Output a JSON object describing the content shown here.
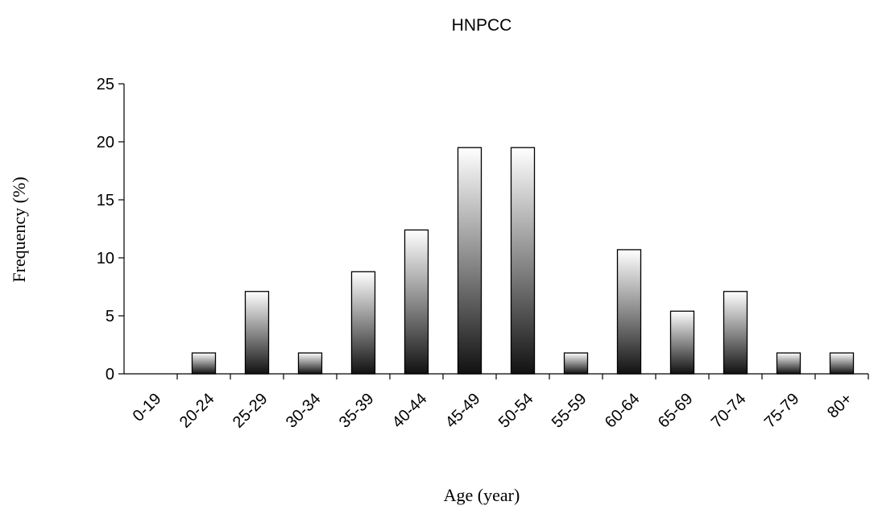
{
  "chart_data": {
    "type": "bar",
    "title": "HNPCC",
    "xlabel": "Age (year)",
    "ylabel": "Frequency (%)",
    "categories": [
      "0-19",
      "20-24",
      "25-29",
      "30-34",
      "35-39",
      "40-44",
      "45-49",
      "50-54",
      "55-59",
      "60-64",
      "65-69",
      "70-74",
      "75-79",
      "80+"
    ],
    "values": [
      0,
      1.8,
      7.1,
      1.8,
      8.8,
      12.4,
      19.5,
      19.5,
      1.8,
      10.7,
      5.4,
      7.1,
      1.8,
      1.8
    ],
    "ylim": [
      0,
      25
    ],
    "yticks": [
      "0",
      "5",
      "10",
      "15",
      "20",
      "25"
    ],
    "grid": false,
    "legend": "none",
    "bar_fill": "vertical gradient, dark bottom to white top",
    "colors": {
      "bar_dark": "#111111",
      "bar_light": "#ffffff",
      "axis": "#000000"
    }
  }
}
